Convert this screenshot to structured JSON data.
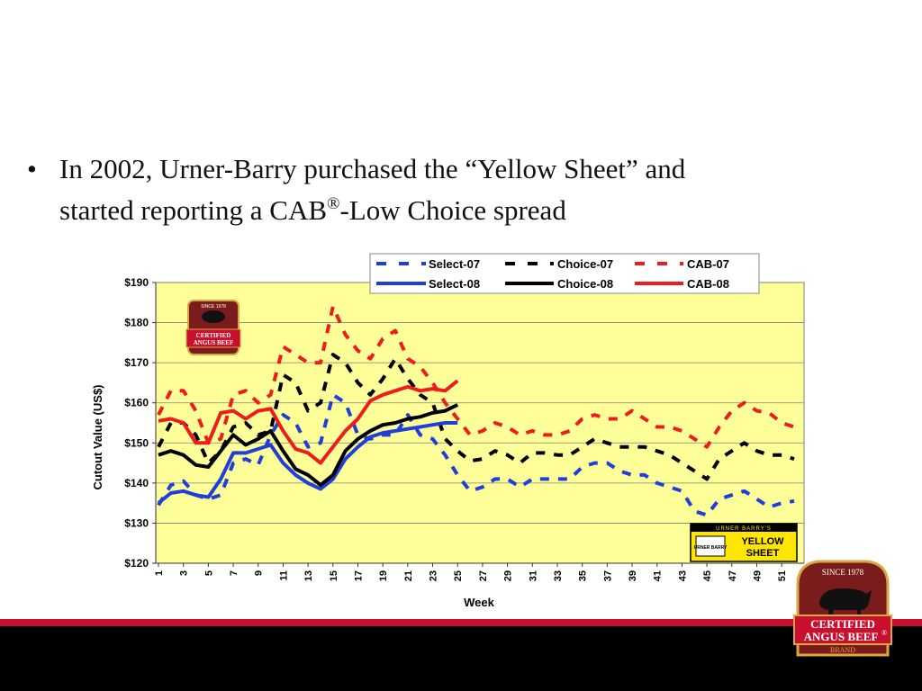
{
  "slide": {
    "bullet_char": "•",
    "bullet_line1": "In 2002, Urner-Barry purchased the “Yellow Sheet” and",
    "bullet_line2_prefix": "started reporting a CAB",
    "bullet_sup": "®",
    "bullet_line2_suffix": "-Low Choice spread"
  },
  "logos": {
    "cab_since": "SINCE 1978",
    "cab_line1": "CERTIFIED",
    "cab_line2": "ANGUS BEEF",
    "cab_brand": "BRAND",
    "cab_reg": "®",
    "urner_barry_top": "URNER BARRY'S",
    "urner_barry_small": "URNER BARRY",
    "yellow_sheet_1": "YELLOW",
    "yellow_sheet_2": "SHEET"
  },
  "colors": {
    "plot_bg": "#ffff99",
    "select": "#1f3fd8",
    "choice": "#000000",
    "cab": "#ee1c1c",
    "footer_red": "#c8102e",
    "footer_black": "#000000",
    "logo_maroon": "#7a1c1c",
    "logo_gold": "#d9a640"
  },
  "chart_data": {
    "type": "line",
    "xlabel": "Week",
    "ylabel": "Cutout Value (US$)",
    "ylim": [
      120,
      190
    ],
    "yticks": [
      120,
      130,
      140,
      150,
      160,
      170,
      180,
      190
    ],
    "ytick_labels": [
      "$120",
      "$130",
      "$140",
      "$150",
      "$160",
      "$170",
      "$180",
      "$190"
    ],
    "xlim": [
      1,
      52
    ],
    "xtick_labels": [
      "1",
      "3",
      "5",
      "7",
      "9",
      "11",
      "13",
      "15",
      "17",
      "19",
      "21",
      "23",
      "25",
      "27",
      "29",
      "31",
      "33",
      "35",
      "37",
      "39",
      "41",
      "43",
      "45",
      "47",
      "49",
      "51"
    ],
    "grid": true,
    "legend_position": "top",
    "series": [
      {
        "name": "Select-07",
        "style": "dashed",
        "color": "#1f3fd8",
        "values": [
          134.5,
          139.5,
          140.5,
          137,
          136,
          137,
          145,
          146,
          144.5,
          152,
          157,
          155,
          149,
          150,
          162,
          160,
          152,
          151,
          152,
          152,
          157,
          152,
          151,
          147,
          142,
          138,
          139,
          141,
          141,
          139,
          141,
          141,
          141,
          141,
          144,
          145,
          145,
          143,
          142,
          142,
          140,
          139,
          138,
          133,
          132,
          136,
          137,
          138,
          136,
          134,
          135,
          135.5
        ]
      },
      {
        "name": "Choice-07",
        "style": "dashed",
        "color": "#000000",
        "values": [
          149,
          155,
          155,
          152,
          145,
          148,
          154,
          155,
          152,
          153,
          167,
          165,
          158,
          160,
          172,
          170,
          165,
          162,
          166,
          171,
          166,
          162,
          160,
          151,
          148,
          145.5,
          146,
          148,
          147,
          145,
          147.5,
          147.5,
          147,
          147,
          149,
          151,
          150,
          149,
          149,
          149,
          148,
          147,
          145,
          143,
          141,
          146,
          148,
          150,
          148,
          147,
          147,
          146
        ]
      },
      {
        "name": "CAB-07",
        "style": "dashed",
        "color": "#ee1c1c",
        "values": [
          157,
          163,
          163,
          158,
          150,
          151,
          162,
          163,
          160,
          162,
          174,
          172,
          170,
          170,
          184,
          177,
          173,
          171,
          176,
          178,
          171,
          169,
          165,
          160,
          156,
          152,
          153,
          155,
          154,
          152,
          153,
          152,
          152,
          153,
          156,
          157,
          156,
          156,
          158,
          156,
          154,
          154,
          153,
          151,
          149,
          154,
          158,
          160,
          158,
          157.5,
          155,
          154
        ]
      },
      {
        "name": "Select-08",
        "style": "solid",
        "color": "#1f3fd8",
        "values": [
          135,
          137.5,
          138,
          137,
          136.5,
          141,
          147.5,
          147.5,
          148.5,
          149.5,
          145,
          142,
          140,
          138.5,
          141,
          146,
          149,
          151.5,
          152.5,
          153,
          153.5,
          154,
          154.5,
          155,
          155,
          null,
          null,
          null,
          null,
          null,
          null,
          null,
          null,
          null,
          null,
          null,
          null,
          null,
          null,
          null,
          null,
          null,
          null,
          null,
          null,
          null,
          null,
          null,
          null,
          null,
          null,
          null
        ]
      },
      {
        "name": "Choice-08",
        "style": "solid",
        "color": "#000000",
        "values": [
          147,
          148,
          147,
          144.5,
          144,
          148,
          152,
          149.5,
          151,
          153,
          148,
          143.5,
          142,
          139.5,
          142,
          148,
          151,
          153,
          154.5,
          155,
          156,
          156.5,
          157.5,
          158,
          159.5,
          null,
          null,
          null,
          null,
          null,
          null,
          null,
          null,
          null,
          null,
          null,
          null,
          null,
          null,
          null,
          null,
          null,
          null,
          null,
          null,
          null,
          null,
          null,
          null,
          null,
          null,
          null
        ]
      },
      {
        "name": "CAB-08",
        "style": "solid",
        "color": "#ee1c1c",
        "values": [
          155.5,
          156,
          155,
          150,
          150,
          157.5,
          158,
          156,
          158,
          158.5,
          153,
          148.5,
          147.5,
          145,
          149,
          153,
          156,
          160.5,
          162,
          163,
          164,
          163,
          163.5,
          163,
          165.5,
          null,
          null,
          null,
          null,
          null,
          null,
          null,
          null,
          null,
          null,
          null,
          null,
          null,
          null,
          null,
          null,
          null,
          null,
          null,
          null,
          null,
          null,
          null,
          null,
          null,
          null,
          null
        ]
      }
    ]
  }
}
